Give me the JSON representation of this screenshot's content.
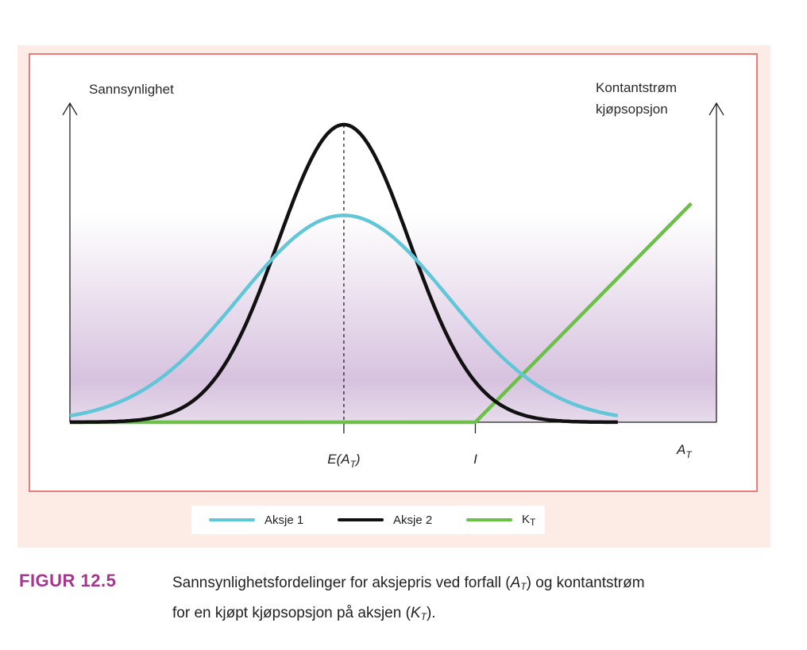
{
  "chart_data": {
    "type": "line",
    "y_left_label": "Sannsynlighet",
    "y_right_label_line1": "Kontantstrøm",
    "y_right_label_line2": "kjøpsopsjon",
    "x_label": "A",
    "x_label_sub": "T",
    "x_ticks": [
      {
        "id": "mean",
        "label": "E(A",
        "sub": "T",
        "close": ")",
        "value": 0.0
      },
      {
        "id": "strike",
        "label": "I",
        "value": 1.2
      }
    ],
    "xlim": [
      -2.5,
      3.4
    ],
    "ylim": [
      0,
      1.0
    ],
    "series": [
      {
        "name": "Aksje 1",
        "kind": "normal",
        "mean": 0.0,
        "sd": 0.95,
        "peak": 0.695,
        "x_start": -2.5,
        "x_end": 2.5,
        "color": "#62c6d9"
      },
      {
        "name": "Aksje 2",
        "kind": "normal",
        "mean": 0.0,
        "sd": 0.6,
        "peak": 1.0,
        "x_start": -2.5,
        "x_end": 2.5,
        "color": "#111111"
      },
      {
        "name": "K",
        "name_sub": "T",
        "kind": "call-payoff",
        "strike": 1.2,
        "x_start": -2.5,
        "x_end": 3.17,
        "y_end": 0.735,
        "color": "#6cc04a"
      }
    ],
    "mean_line": "dashed"
  },
  "legend": [
    {
      "label": "Aksje 1",
      "color": "#62c6d9"
    },
    {
      "label": "Aksje 2",
      "color": "#111111"
    },
    {
      "label": "K",
      "sub": "T",
      "color": "#6cc04a"
    }
  ],
  "caption": {
    "figure_label": "FIGUR 12.5",
    "line1_a": "Sannsynlighetsfordelinger for aksjepris ved forfall (",
    "line1_var": "A",
    "line1_sub": "T",
    "line1_b": ") og kontantstrøm",
    "line2_a": "for en kjøpt kjøpsopsjon på aksjen (",
    "line2_var": "K",
    "line2_sub": "T",
    "line2_b": ")."
  }
}
